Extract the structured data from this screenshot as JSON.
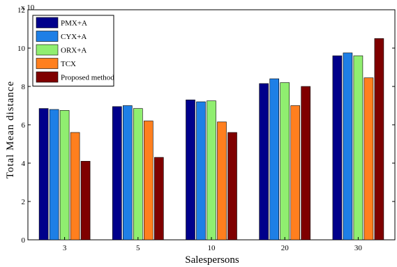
{
  "chart_data": {
    "type": "bar",
    "title": "",
    "xlabel": "Salespersons",
    "ylabel": "Total Mean distance",
    "y_exponent_label": "x 10",
    "ylim": [
      0,
      12
    ],
    "yticks": [
      "0",
      "2",
      "4",
      "6",
      "8",
      "10",
      "12"
    ],
    "categories": [
      "3",
      "5",
      "10",
      "20",
      "30"
    ],
    "series": [
      {
        "name": "PMX+A",
        "color": "#00008b",
        "values": [
          6.85,
          6.95,
          7.3,
          8.15,
          9.6
        ]
      },
      {
        "name": "CYX+A",
        "color": "#1e7fe6",
        "values": [
          6.8,
          7.0,
          7.2,
          8.4,
          9.75
        ]
      },
      {
        "name": "ORX+A",
        "color": "#90ee70",
        "values": [
          6.75,
          6.85,
          7.25,
          8.2,
          9.6
        ]
      },
      {
        "name": "TCX",
        "color": "#ff7f1e",
        "values": [
          5.6,
          6.2,
          6.15,
          7.0,
          8.45
        ]
      },
      {
        "name": "Proposed method",
        "color": "#7f0000",
        "values": [
          4.1,
          4.3,
          5.6,
          8.0,
          10.5
        ]
      }
    ],
    "legend_position": "top-left",
    "grid": false
  }
}
